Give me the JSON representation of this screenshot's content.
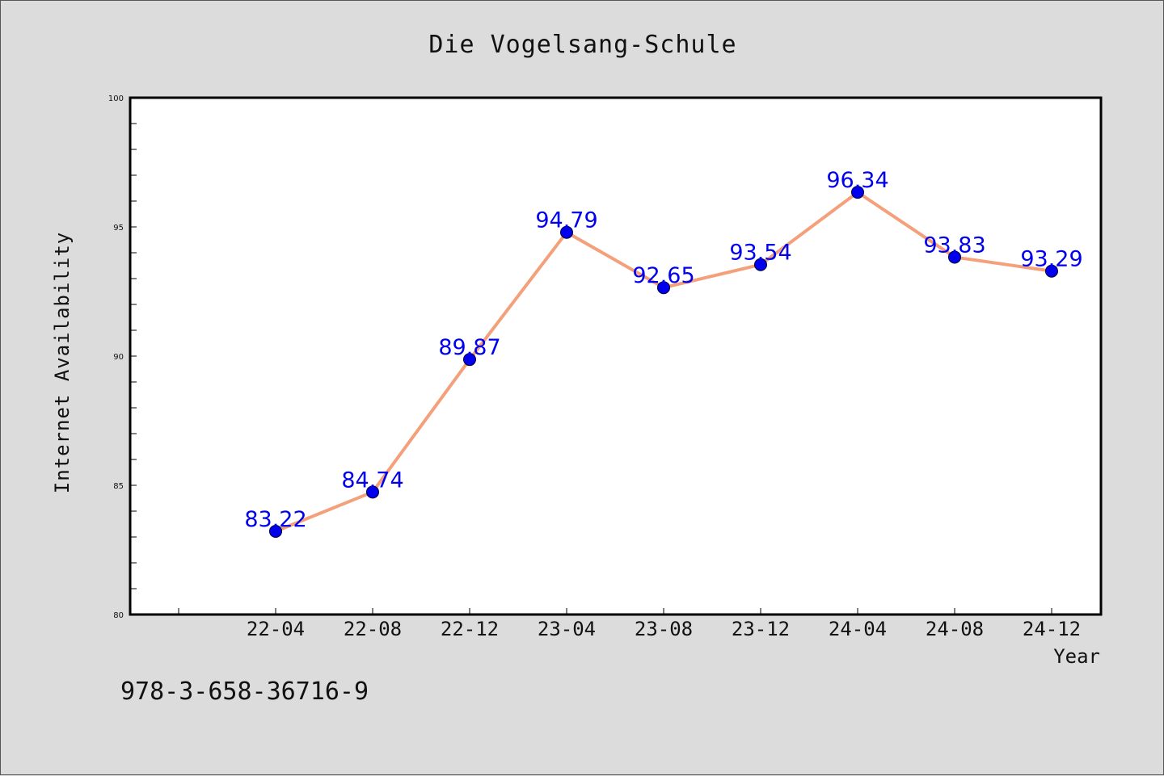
{
  "footnote": "978-3-658-36716-9",
  "colors": {
    "line": "#f4a07a",
    "marker": "#0000ee",
    "label": "#0000ee",
    "plot_background": "#ffffff",
    "page_background": "#dcdcdc"
  },
  "chart_data": {
    "type": "line",
    "title": "Die Vogelsang-Schule",
    "xlabel": "Year",
    "ylabel": "Internet Availability",
    "categories": [
      "22-04",
      "22-08",
      "22-12",
      "23-04",
      "23-08",
      "23-12",
      "24-04",
      "24-08",
      "24-12"
    ],
    "series": [
      {
        "values": [
          83.22,
          84.74,
          89.87,
          94.79,
          92.65,
          93.54,
          96.34,
          93.83,
          93.29
        ],
        "labels": [
          "83.22",
          "84.74",
          "89.87",
          "94.79",
          "92.65",
          "93.54",
          "96.34",
          "93.83",
          "93.29"
        ]
      }
    ],
    "ylim": [
      80,
      100
    ],
    "yticks": [
      "80",
      "85",
      "90",
      "95",
      "100"
    ],
    "grid": false,
    "legend": "none"
  }
}
